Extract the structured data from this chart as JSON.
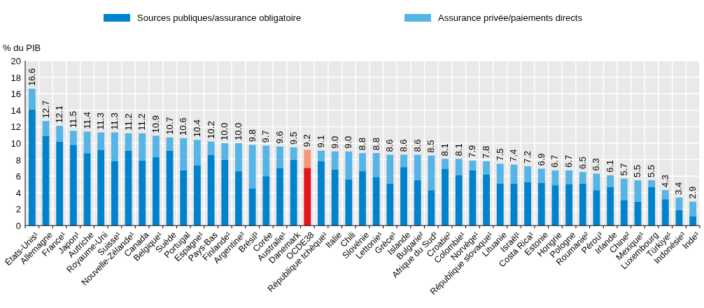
{
  "chart_data": {
    "type": "bar",
    "stacked": true,
    "ylabel": "% du PIB",
    "ylim": [
      0,
      20
    ],
    "yticks": [
      0,
      2,
      4,
      6,
      8,
      10,
      12,
      14,
      16,
      18,
      20
    ],
    "grid": true,
    "legend": "top",
    "categories": [
      "États-Unis¹",
      "Allemagne",
      "France¹",
      "Japon¹",
      "Autriche",
      "Royaume-Uni",
      "Suisse¹",
      "Nouvelle-Zélande¹",
      "Canada",
      "Belgique¹",
      "Suède",
      "Portugal",
      "Espagne¹",
      "Pays-Bas",
      "Finlande¹",
      "Argentine³",
      "Brésil³",
      "Corée",
      "Australie¹",
      "Danemark",
      "OCDE38",
      "République tchèque¹",
      "Italie",
      "Chili",
      "Slovénie",
      "Lettonie¹",
      "Grèce¹",
      "Islande",
      "Bulgarie²",
      "Afrique du Sud³",
      "Croatie²",
      "Colombie¹",
      "Norvège¹",
      "République slovaque¹",
      "Lituanie",
      "Israël¹",
      "Costa Rica¹",
      "Estonie",
      "Hongrie",
      "Pologne",
      "Roumanie²",
      "Pérou³",
      "Irlande",
      "Chine²",
      "Mexique¹",
      "Luxembourg",
      "Türkiye¹",
      "Indonésie³",
      "Inde³"
    ],
    "series": [
      {
        "name": "Sources publiques/assurance obligatoire",
        "color": "#0083cc",
        "colors": [
          "#0083cc",
          "#0083cc",
          "#0083cc",
          "#0083cc",
          "#0083cc",
          "#0083cc",
          "#0083cc",
          "#0083cc",
          "#0083cc",
          "#0083cc",
          "#0083cc",
          "#0083cc",
          "#0083cc",
          "#0083cc",
          "#0083cc",
          "#0083cc",
          "#0083cc",
          "#0083cc",
          "#0083cc",
          "#0083cc",
          "#e3141b",
          "#0083cc",
          "#0083cc",
          "#0083cc",
          "#0083cc",
          "#0083cc",
          "#0083cc",
          "#0083cc",
          "#0083cc",
          "#0083cc",
          "#0083cc",
          "#0083cc",
          "#0083cc",
          "#0083cc",
          "#0083cc",
          "#0083cc",
          "#0083cc",
          "#0083cc",
          "#0083cc",
          "#0083cc",
          "#0083cc",
          "#0083cc",
          "#0083cc",
          "#0083cc",
          "#0083cc",
          "#0083cc",
          "#0083cc",
          "#0083cc",
          "#0083cc"
        ],
        "values": [
          14.1,
          10.9,
          10.2,
          9.8,
          8.8,
          9.2,
          7.8,
          9.1,
          7.9,
          8.3,
          9.1,
          6.7,
          7.3,
          8.6,
          8.0,
          6.6,
          4.5,
          6.0,
          7.0,
          8.0,
          7.0,
          7.8,
          6.8,
          5.6,
          6.6,
          5.9,
          5.1,
          7.1,
          5.5,
          4.3,
          6.9,
          6.1,
          6.7,
          6.2,
          5.1,
          5.1,
          5.3,
          5.2,
          4.9,
          5.0,
          5.1,
          4.3,
          4.7,
          3.1,
          2.9,
          4.7,
          3.2,
          1.9,
          1.1
        ]
      },
      {
        "name": "Assurance privée/paiements directs",
        "color": "#56b4e6",
        "colors": [
          "#56b4e6",
          "#56b4e6",
          "#56b4e6",
          "#56b4e6",
          "#56b4e6",
          "#56b4e6",
          "#56b4e6",
          "#56b4e6",
          "#56b4e6",
          "#56b4e6",
          "#56b4e6",
          "#56b4e6",
          "#56b4e6",
          "#56b4e6",
          "#56b4e6",
          "#56b4e6",
          "#56b4e6",
          "#56b4e6",
          "#56b4e6",
          "#56b4e6",
          "#f7977a",
          "#56b4e6",
          "#56b4e6",
          "#56b4e6",
          "#56b4e6",
          "#56b4e6",
          "#56b4e6",
          "#56b4e6",
          "#56b4e6",
          "#56b4e6",
          "#56b4e6",
          "#56b4e6",
          "#56b4e6",
          "#56b4e6",
          "#56b4e6",
          "#56b4e6",
          "#56b4e6",
          "#56b4e6",
          "#56b4e6",
          "#56b4e6",
          "#56b4e6",
          "#56b4e6",
          "#56b4e6",
          "#56b4e6",
          "#56b4e6",
          "#56b4e6",
          "#56b4e6",
          "#56b4e6",
          "#56b4e6"
        ],
        "values": [
          2.5,
          1.8,
          1.9,
          1.7,
          2.6,
          2.1,
          3.5,
          2.1,
          3.3,
          2.6,
          1.6,
          3.9,
          3.1,
          1.6,
          2.0,
          3.4,
          5.3,
          3.7,
          2.6,
          1.5,
          2.2,
          1.3,
          2.2,
          3.4,
          2.2,
          2.9,
          3.5,
          1.5,
          3.1,
          4.2,
          1.2,
          2.0,
          1.2,
          1.6,
          2.4,
          2.3,
          1.9,
          1.7,
          1.8,
          1.7,
          1.4,
          2.0,
          1.4,
          2.6,
          2.6,
          0.8,
          1.1,
          1.5,
          1.8
        ]
      }
    ],
    "totals": [
      "16.6",
      "12.7",
      "12.1",
      "11.5",
      "11.4",
      "11.3",
      "11.3",
      "11.2",
      "11.2",
      "10.9",
      "10.7",
      "10.6",
      "10.4",
      "10.2",
      "10.0",
      "10.0",
      "9.8",
      "9.7",
      "9.6",
      "9.5",
      "9.2",
      "9.1",
      "9.0",
      "9.0",
      "8.8",
      "8.8",
      "8.6",
      "8.6",
      "8.6",
      "8.5",
      "8.1",
      "8.1",
      "7.9",
      "7.8",
      "7.5",
      "7.4",
      "7.2",
      "6.9",
      "6.7",
      "6.7",
      "6.5",
      "6.3",
      "6.1",
      "5.7",
      "5.5",
      "5.5",
      "4.3",
      "3.4",
      "2.9"
    ]
  }
}
